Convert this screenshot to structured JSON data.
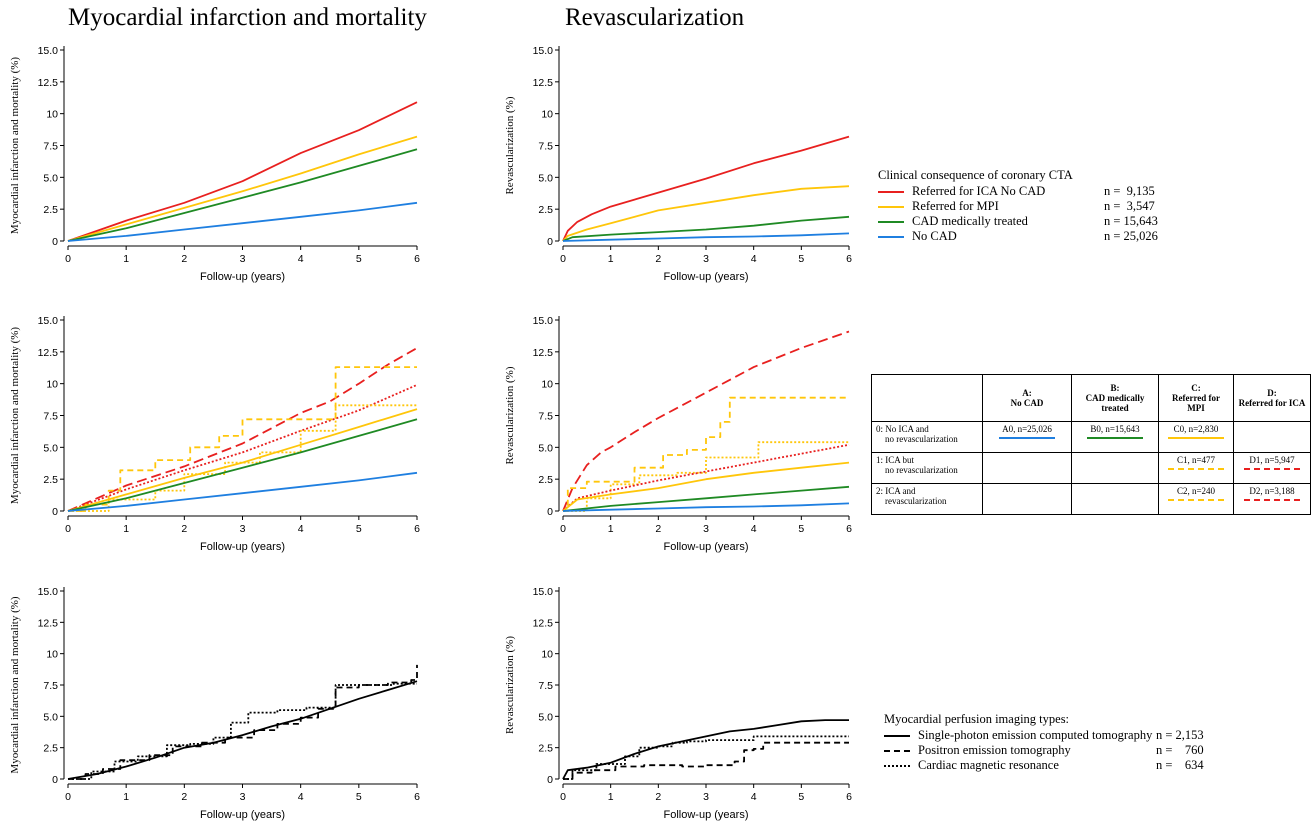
{
  "column_titles": [
    "Myocardial infarction and mortality",
    "Revascularization"
  ],
  "colors": {
    "red": "#e8201f",
    "yellow": "#ffc60a",
    "green": "#1f8a24",
    "blue": "#1f7fe0",
    "black": "#000000"
  },
  "legend_top": {
    "title": "Clinical consequence of coronary CTA",
    "items": [
      {
        "label": "Referred for ICA No CAD",
        "n": "n =  9,135",
        "color": "red",
        "dash": "solid"
      },
      {
        "label": "Referred for MPI",
        "n": "n =  3,547",
        "color": "yellow",
        "dash": "solid"
      },
      {
        "label": "CAD medically treated",
        "n": "n = 15,643",
        "color": "green",
        "dash": "solid"
      },
      {
        "label": "No CAD",
        "n": "n = 25,026",
        "color": "blue",
        "dash": "solid"
      }
    ]
  },
  "legend_bottom": {
    "title": "Myocardial perfusion imaging types:",
    "items": [
      {
        "label": "Single-photon emission computed tomography",
        "n": "n = 2,153",
        "dash": "solid"
      },
      {
        "label": "Positron emission tomography",
        "n": "n =    760",
        "dash": "dashed"
      },
      {
        "label": "Cardiac magnetic resonance",
        "n": "n =    634",
        "dash": "dotted"
      }
    ]
  },
  "table": {
    "headers": [
      {
        "line1": "A:",
        "line2": "No CAD"
      },
      {
        "line1": "B:",
        "line2": "CAD medically treated"
      },
      {
        "line1": "C:",
        "line2": "Referred for MPI"
      },
      {
        "line1": "D:",
        "line2": "Referred for ICA"
      }
    ],
    "rows": [
      {
        "label": "0: No ICA and\n    no revascularization",
        "cells": [
          {
            "text": "A0, n=25,026",
            "color": "blue",
            "dash": "solid"
          },
          {
            "text": "B0, n=15,643",
            "color": "green",
            "dash": "solid"
          },
          {
            "text": "C0, n=2,830",
            "color": "yellow",
            "dash": "solid"
          },
          {
            "text": "",
            "color": "",
            "dash": ""
          }
        ]
      },
      {
        "label": "1: ICA but\n    no revascularization",
        "cells": [
          {
            "text": "",
            "color": "",
            "dash": ""
          },
          {
            "text": "",
            "color": "",
            "dash": ""
          },
          {
            "text": "C1, n=477",
            "color": "yellow",
            "dash": "dashed"
          },
          {
            "text": "D1, n=5,947",
            "color": "red",
            "dash": "dashed"
          }
        ]
      },
      {
        "label": "2: ICA and\n    revascularization",
        "cells": [
          {
            "text": "",
            "color": "",
            "dash": ""
          },
          {
            "text": "",
            "color": "",
            "dash": ""
          },
          {
            "text": "C2, n=240",
            "color": "yellow",
            "dash": "longdash"
          },
          {
            "text": "D2, n=3,188",
            "color": "red",
            "dash": "longdash"
          }
        ]
      }
    ]
  },
  "chart_data": [
    {
      "type": "line",
      "xlabel": "Follow-up (years)",
      "ylabel": "Myocardial infarction and mortality (%)",
      "xlim": [
        0,
        6
      ],
      "ylim": [
        0,
        15
      ],
      "xticks": [
        "0",
        "1",
        "2",
        "3",
        "4",
        "5",
        "6"
      ],
      "yticks": [
        "0",
        "2.5",
        "5.0",
        "7.5",
        "10",
        "12.5",
        "15.0"
      ],
      "series": [
        {
          "color": "red",
          "dash": "solid",
          "step": false,
          "x": [
            0,
            1,
            2,
            3,
            4,
            5,
            6
          ],
          "y": [
            0,
            1.6,
            3.0,
            4.7,
            6.9,
            8.7,
            10.9
          ]
        },
        {
          "color": "yellow",
          "dash": "solid",
          "step": false,
          "x": [
            0,
            1,
            2,
            3,
            4,
            5,
            6
          ],
          "y": [
            0,
            1.3,
            2.6,
            3.9,
            5.3,
            6.8,
            8.2
          ]
        },
        {
          "color": "green",
          "dash": "solid",
          "step": false,
          "x": [
            0,
            1,
            2,
            3,
            4,
            5,
            6
          ],
          "y": [
            0,
            1.0,
            2.2,
            3.4,
            4.6,
            5.9,
            7.2
          ]
        },
        {
          "color": "blue",
          "dash": "solid",
          "step": false,
          "x": [
            0,
            1,
            2,
            3,
            4,
            5,
            6
          ],
          "y": [
            0,
            0.4,
            0.9,
            1.4,
            1.9,
            2.4,
            3.0
          ]
        }
      ]
    },
    {
      "type": "line",
      "xlabel": "Follow-up (years)",
      "ylabel": "Revascularization (%)",
      "xlim": [
        0,
        6
      ],
      "ylim": [
        0,
        15
      ],
      "xticks": [
        "0",
        "1",
        "2",
        "3",
        "4",
        "5",
        "6"
      ],
      "yticks": [
        "0",
        "2.5",
        "5.0",
        "7.5",
        "10",
        "12.5",
        "15.0"
      ],
      "series": [
        {
          "color": "red",
          "dash": "solid",
          "step": false,
          "x": [
            0,
            0.1,
            0.3,
            0.6,
            1,
            2,
            3,
            4,
            5,
            6
          ],
          "y": [
            0,
            0.8,
            1.5,
            2.1,
            2.7,
            3.8,
            4.9,
            6.1,
            7.1,
            8.2
          ]
        },
        {
          "color": "yellow",
          "dash": "solid",
          "step": false,
          "x": [
            0,
            0.1,
            0.5,
            1,
            2,
            3,
            4,
            5,
            6
          ],
          "y": [
            0,
            0.4,
            0.9,
            1.4,
            2.4,
            3.0,
            3.6,
            4.1,
            4.3
          ]
        },
        {
          "color": "green",
          "dash": "solid",
          "step": false,
          "x": [
            0,
            0.2,
            1,
            2,
            3,
            4,
            5,
            6
          ],
          "y": [
            0,
            0.3,
            0.5,
            0.7,
            0.9,
            1.2,
            1.6,
            1.9
          ]
        },
        {
          "color": "blue",
          "dash": "solid",
          "step": false,
          "x": [
            0,
            1,
            2,
            3,
            4,
            5,
            6
          ],
          "y": [
            0,
            0.1,
            0.2,
            0.3,
            0.35,
            0.45,
            0.6
          ]
        }
      ]
    },
    {
      "type": "line",
      "xlabel": "Follow-up (years)",
      "ylabel": "Myocardial infarction and mortality (%)",
      "xlim": [
        0,
        6
      ],
      "ylim": [
        0,
        15
      ],
      "xticks": [
        "0",
        "1",
        "2",
        "3",
        "4",
        "5",
        "6"
      ],
      "yticks": [
        "0",
        "2.5",
        "5.0",
        "7.5",
        "10",
        "12.5",
        "15.0"
      ],
      "series": [
        {
          "color": "red",
          "dash": "longdash",
          "step": false,
          "x": [
            0,
            1,
            2,
            3,
            4,
            4.5,
            5,
            5.5,
            6
          ],
          "y": [
            0,
            2.0,
            3.5,
            5.3,
            7.7,
            8.6,
            10.0,
            11.5,
            12.8
          ]
        },
        {
          "color": "red",
          "dash": "dotted",
          "step": false,
          "x": [
            0,
            1,
            2,
            3,
            4,
            5,
            6
          ],
          "y": [
            0,
            1.7,
            3.2,
            4.6,
            6.3,
            7.9,
            9.9
          ]
        },
        {
          "color": "yellow",
          "dash": "dashed",
          "step": true,
          "x": [
            0,
            0.3,
            0.7,
            0.9,
            1.5,
            2.1,
            2.6,
            3.0,
            4.1,
            4.6,
            5.5,
            6
          ],
          "y": [
            0,
            0.5,
            1.6,
            3.2,
            4.0,
            5.0,
            5.9,
            7.2,
            7.2,
            11.3,
            11.3,
            11.3
          ]
        },
        {
          "color": "yellow",
          "dash": "dotted",
          "step": true,
          "x": [
            0,
            0.7,
            1.5,
            2.0,
            2.7,
            3.3,
            4.0,
            4.6,
            5.2,
            6
          ],
          "y": [
            0,
            0.9,
            1.6,
            2.9,
            3.8,
            4.6,
            6.3,
            8.3,
            8.3,
            8.3
          ]
        },
        {
          "color": "yellow",
          "dash": "solid",
          "step": false,
          "x": [
            0,
            1,
            2,
            3,
            4,
            5,
            6
          ],
          "y": [
            0,
            1.3,
            2.6,
            3.8,
            5.2,
            6.6,
            8.0
          ]
        },
        {
          "color": "green",
          "dash": "solid",
          "step": false,
          "x": [
            0,
            1,
            2,
            3,
            4,
            5,
            6
          ],
          "y": [
            0,
            1.0,
            2.2,
            3.4,
            4.6,
            5.9,
            7.2
          ]
        },
        {
          "color": "blue",
          "dash": "solid",
          "step": false,
          "x": [
            0,
            1,
            2,
            3,
            4,
            5,
            6
          ],
          "y": [
            0,
            0.4,
            0.9,
            1.4,
            1.9,
            2.4,
            3.0
          ]
        }
      ]
    },
    {
      "type": "line",
      "xlabel": "Follow-up (years)",
      "ylabel": "Revascularization (%)",
      "xlim": [
        0,
        6
      ],
      "ylim": [
        0,
        15
      ],
      "xticks": [
        "0",
        "1",
        "2",
        "3",
        "4",
        "5",
        "6"
      ],
      "yticks": [
        "0",
        "2.5",
        "5.0",
        "7.5",
        "10",
        "12.5",
        "15.0"
      ],
      "series": [
        {
          "color": "red",
          "dash": "longdash",
          "step": false,
          "x": [
            0,
            0.2,
            0.5,
            0.8,
            1,
            1.5,
            2,
            3,
            4,
            5,
            6
          ],
          "y": [
            0,
            1.8,
            3.6,
            4.6,
            5.0,
            6.2,
            7.3,
            9.3,
            11.3,
            12.8,
            14.1
          ]
        },
        {
          "color": "yellow",
          "dash": "dashed",
          "step": true,
          "x": [
            0,
            0.1,
            0.5,
            1.5,
            2.1,
            2.6,
            3.0,
            3.3,
            3.5,
            4.0,
            6
          ],
          "y": [
            0,
            1.8,
            2.3,
            3.4,
            4.4,
            4.8,
            5.8,
            7.0,
            8.9,
            8.9,
            8.9
          ]
        },
        {
          "color": "yellow",
          "dash": "dotted",
          "step": true,
          "x": [
            0,
            0.5,
            1.0,
            1.6,
            2.4,
            3.0,
            4.1,
            6
          ],
          "y": [
            0,
            1.0,
            2.1,
            2.8,
            3.0,
            4.2,
            5.4,
            5.4
          ]
        },
        {
          "color": "red",
          "dash": "dotted",
          "step": false,
          "x": [
            0,
            0.3,
            1,
            2,
            3,
            4,
            5,
            6
          ],
          "y": [
            0,
            1.0,
            1.6,
            2.4,
            3.1,
            3.8,
            4.5,
            5.2
          ]
        },
        {
          "color": "yellow",
          "dash": "solid",
          "step": false,
          "x": [
            0,
            0.3,
            1,
            2,
            3,
            4,
            5,
            6
          ],
          "y": [
            0,
            0.9,
            1.3,
            1.8,
            2.5,
            3.0,
            3.4,
            3.8
          ]
        },
        {
          "color": "green",
          "dash": "solid",
          "step": false,
          "x": [
            0,
            1,
            2,
            3,
            4,
            5,
            6
          ],
          "y": [
            0,
            0.4,
            0.7,
            1.0,
            1.3,
            1.6,
            1.9
          ]
        },
        {
          "color": "blue",
          "dash": "solid",
          "step": false,
          "x": [
            0,
            1,
            2,
            3,
            4,
            5,
            6
          ],
          "y": [
            0,
            0.1,
            0.2,
            0.3,
            0.35,
            0.45,
            0.6
          ]
        }
      ]
    },
    {
      "type": "line",
      "xlabel": "Follow-up (years)",
      "ylabel": "Myocardial infarction and mortality (%)",
      "xlim": [
        0,
        6
      ],
      "ylim": [
        0,
        15
      ],
      "xticks": [
        "0",
        "1",
        "2",
        "3",
        "4",
        "5",
        "6"
      ],
      "yticks": [
        "0",
        "2.5",
        "5.0",
        "7.5",
        "10",
        "12.5",
        "15.0"
      ],
      "series": [
        {
          "color": "black",
          "dash": "solid",
          "step": false,
          "x": [
            0,
            0.5,
            1,
            1.5,
            2,
            2.5,
            3,
            3.5,
            4,
            4.5,
            5,
            5.5,
            6
          ],
          "y": [
            0,
            0.4,
            1.0,
            1.7,
            2.5,
            2.9,
            3.5,
            4.2,
            4.8,
            5.6,
            6.4,
            7.1,
            7.8
          ]
        },
        {
          "color": "black",
          "dash": "dashed",
          "step": true,
          "x": [
            0,
            0.3,
            0.6,
            0.9,
            1.4,
            1.8,
            2.3,
            2.7,
            3.2,
            3.6,
            4.0,
            4.3,
            4.6,
            5.0,
            5.5,
            5.9,
            6.0
          ],
          "y": [
            0,
            0.4,
            0.8,
            1.5,
            1.9,
            2.6,
            2.9,
            3.3,
            3.9,
            4.4,
            4.9,
            5.6,
            7.3,
            7.5,
            7.7,
            7.9,
            9.1
          ]
        },
        {
          "color": "black",
          "dash": "dotted",
          "step": true,
          "x": [
            0,
            0.4,
            0.8,
            1.2,
            1.7,
            2.1,
            2.5,
            2.8,
            3.1,
            3.6,
            4.1,
            4.6,
            5.2,
            5.6,
            6.0
          ],
          "y": [
            0,
            0.6,
            1.4,
            1.8,
            2.7,
            2.8,
            3.3,
            4.5,
            5.3,
            5.5,
            5.7,
            7.5,
            7.5,
            7.6,
            7.6
          ]
        }
      ]
    },
    {
      "type": "line",
      "xlabel": "Follow-up (years)",
      "ylabel": "Revascularization (%)",
      "xlim": [
        0,
        6
      ],
      "ylim": [
        0,
        15
      ],
      "xticks": [
        "0",
        "1",
        "2",
        "3",
        "4",
        "5",
        "6"
      ],
      "yticks": [
        "0",
        "2.5",
        "5.0",
        "7.5",
        "10",
        "12.5",
        "15.0"
      ],
      "series": [
        {
          "color": "black",
          "dash": "solid",
          "step": false,
          "x": [
            0,
            0.1,
            0.5,
            1,
            1.5,
            2,
            2.5,
            3,
            3.5,
            4,
            4.5,
            5,
            5.5,
            6
          ],
          "y": [
            0,
            0.7,
            0.9,
            1.3,
            2.0,
            2.6,
            3.0,
            3.4,
            3.8,
            4.0,
            4.3,
            4.6,
            4.7,
            4.7
          ]
        },
        {
          "color": "black",
          "dash": "dashed",
          "step": true,
          "x": [
            0,
            0.2,
            0.6,
            1.1,
            1.7,
            2.5,
            3.0,
            3.6,
            3.8,
            4.0,
            4.2,
            6.0
          ],
          "y": [
            0,
            0.5,
            0.7,
            1.0,
            1.1,
            1.0,
            1.1,
            1.4,
            2.3,
            2.4,
            2.9,
            2.9
          ]
        },
        {
          "color": "black",
          "dash": "dotted",
          "step": true,
          "x": [
            0,
            0.2,
            0.7,
            1.3,
            1.6,
            2.0,
            2.3,
            2.6,
            3.0,
            4.0,
            6.0
          ],
          "y": [
            0,
            0.7,
            1.2,
            1.8,
            2.5,
            2.6,
            2.9,
            3.0,
            3.1,
            3.4,
            3.4
          ]
        }
      ]
    }
  ]
}
